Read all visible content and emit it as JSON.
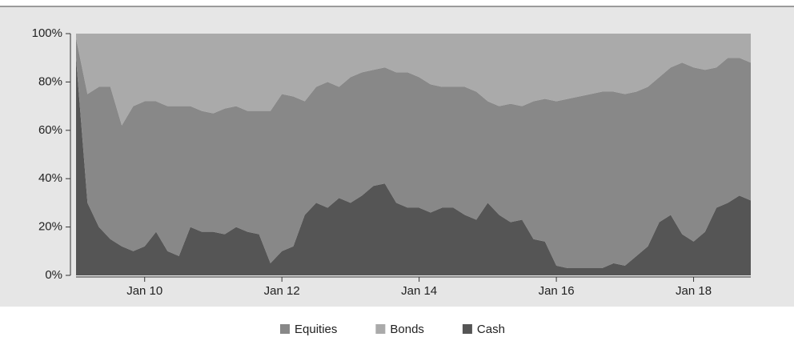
{
  "chart_data": {
    "type": "stacked_area",
    "categories": [
      null,
      null,
      null,
      null,
      null,
      null,
      "Jan 10",
      null,
      null,
      null,
      null,
      null,
      null,
      null,
      null,
      null,
      null,
      null,
      "Jan 12",
      null,
      null,
      null,
      null,
      null,
      null,
      null,
      null,
      null,
      null,
      null,
      "Jan 14",
      null,
      null,
      null,
      null,
      null,
      null,
      null,
      null,
      null,
      null,
      null,
      "Jan 16",
      null,
      null,
      null,
      null,
      null,
      null,
      null,
      null,
      null,
      null,
      null,
      "Jan 18",
      null,
      null,
      null,
      null,
      null
    ],
    "series": [
      {
        "name": "Cash",
        "color": "#555555",
        "values": [
          90,
          30,
          20,
          15,
          12,
          10,
          12,
          18,
          10,
          8,
          20,
          18,
          18,
          17,
          20,
          18,
          17,
          5,
          10,
          12,
          25,
          30,
          28,
          32,
          30,
          33,
          37,
          38,
          30,
          28,
          28,
          26,
          28,
          28,
          25,
          23,
          30,
          25,
          22,
          23,
          15,
          14,
          4,
          3,
          3,
          3,
          3,
          5,
          4,
          8,
          12,
          22,
          25,
          17,
          14,
          18,
          28,
          30,
          33,
          31
        ]
      },
      {
        "name": "Equities",
        "color": "#888888",
        "values": [
          8,
          45,
          58,
          63,
          50,
          60,
          60,
          54,
          60,
          62,
          50,
          50,
          49,
          52,
          50,
          50,
          51,
          63,
          65,
          62,
          47,
          48,
          52,
          46,
          52,
          51,
          48,
          48,
          54,
          56,
          54,
          53,
          50,
          50,
          53,
          53,
          42,
          45,
          49,
          47,
          57,
          59,
          68,
          70,
          71,
          72,
          73,
          71,
          71,
          68,
          66,
          60,
          61,
          71,
          72,
          67,
          58,
          60,
          57,
          57
        ]
      },
      {
        "name": "Bonds",
        "color": "#aaaaaa",
        "values": [
          2,
          25,
          22,
          22,
          38,
          30,
          28,
          28,
          30,
          30,
          30,
          32,
          33,
          31,
          30,
          32,
          32,
          32,
          25,
          26,
          28,
          22,
          20,
          22,
          18,
          16,
          15,
          14,
          16,
          16,
          18,
          21,
          22,
          22,
          22,
          24,
          28,
          30,
          29,
          30,
          28,
          27,
          28,
          27,
          26,
          25,
          24,
          24,
          25,
          24,
          22,
          18,
          14,
          12,
          14,
          15,
          14,
          10,
          10,
          12
        ]
      }
    ],
    "legend_order": [
      "Equities",
      "Bonds",
      "Cash"
    ],
    "ylim": [
      0,
      100
    ],
    "yticks": [
      {
        "value": 0,
        "label": "0%"
      },
      {
        "value": 20,
        "label": "20%"
      },
      {
        "value": 40,
        "label": "40%"
      },
      {
        "value": 60,
        "label": "60%"
      },
      {
        "value": 80,
        "label": "80%"
      },
      {
        "value": 100,
        "label": "100%"
      }
    ]
  }
}
